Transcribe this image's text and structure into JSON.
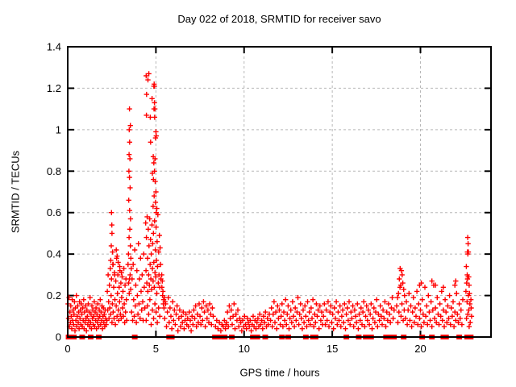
{
  "chart_data": {
    "type": "scatter",
    "title": "Day 022 of 2018, SRMTID for receiver savo",
    "xlabel": "GPS time / hours",
    "ylabel": "SRMTID / TECUs",
    "xlim": [
      0,
      24
    ],
    "ylim": [
      0,
      1.4
    ],
    "xticks": {
      "values": [
        0,
        5,
        10,
        15,
        20
      ],
      "labels": [
        "0",
        "5",
        "10",
        "15",
        "20"
      ]
    },
    "yticks": {
      "values": [
        0,
        0.2,
        0.4,
        0.6,
        0.8,
        1.0,
        1.2,
        1.4
      ],
      "labels": [
        "0",
        "0.2",
        "0.4",
        "0.6",
        "0.8",
        "1",
        "1.2",
        "1.4"
      ]
    },
    "grid": true,
    "legend": "none",
    "marker": "plus",
    "marker_color": "#ff0000",
    "grid_color": "#b8b8b8",
    "border_color": "#000000",
    "bands": [
      {
        "h0": 0.02,
        "dh": 0.026,
        "v": [
          0.16,
          0.09,
          0.19,
          0.05,
          0.12,
          0.07,
          0.15,
          0.1,
          0.04,
          0.18,
          0.08,
          0.13,
          0.06,
          0.11,
          0.17,
          0.03,
          0.14,
          0.08,
          0.2,
          0.05,
          0.1,
          0.15,
          0.07,
          0.12,
          0.04,
          0.17,
          0.09,
          0.13,
          0.06,
          0.16,
          0.11,
          0.05,
          0.14,
          0.08,
          0.18,
          0.04,
          0.12,
          0.07,
          0.15,
          0.09,
          0.03,
          0.13,
          0.1,
          0.06,
          0.16,
          0.08,
          0.12,
          0.05,
          0.19,
          0.07,
          0.11,
          0.04,
          0.15,
          0.09,
          0.13,
          0.06,
          0.1,
          0.17,
          0.05,
          0.12,
          0.08,
          0.14,
          0.04,
          0.11,
          0.07,
          0.16,
          0.09,
          0.05,
          0.13,
          0.1,
          0.18,
          0.06,
          0.12,
          0.08,
          0.15,
          0.04,
          0.1,
          0.14,
          0.07,
          0.11,
          0.05,
          0.13,
          0.09,
          0.06
        ]
      },
      {
        "h0": 2.22,
        "dh": 0.024,
        "v": [
          0.08,
          0.22,
          0.13,
          0.3,
          0.17,
          0.09,
          0.25,
          0.14,
          0.33,
          0.11,
          0.2,
          0.28,
          0.07,
          0.16,
          0.35,
          0.12,
          0.24,
          0.09,
          0.31,
          0.18,
          0.06,
          0.27,
          0.15,
          0.38,
          0.1,
          0.21,
          0.3,
          0.13,
          0.08,
          0.24,
          0.17,
          0.32,
          0.11,
          0.26,
          0.09,
          0.19,
          0.29,
          0.14,
          0.22,
          0.1,
          0.33,
          0.16,
          0.07,
          0.25,
          0.12,
          0.28,
          0.18,
          0.08
        ]
      },
      {
        "h0": 3.62,
        "dh": 0.03,
        "v": [
          0.12,
          0.28,
          0.08,
          0.35,
          0.18,
          0.1,
          0.42,
          0.15,
          0.25,
          0.07,
          0.32,
          0.2,
          0.11,
          0.45,
          0.16,
          0.28,
          0.09,
          0.38,
          0.22,
          0.13,
          0.3,
          0.17,
          0.08,
          0.4,
          0.24,
          0.14
        ]
      },
      {
        "h0": 4.42,
        "dh": 0.021,
        "v": [
          0.55,
          0.32,
          0.48,
          0.26,
          0.58,
          0.38,
          0.22,
          0.52,
          0.3,
          0.44,
          0.25,
          0.57,
          0.35,
          0.47,
          0.28,
          0.4,
          0.23,
          0.54,
          0.33,
          0.45,
          0.27,
          0.5,
          0.36,
          0.24,
          0.56,
          0.31,
          0.42,
          0.29,
          0.53,
          0.37,
          0.21,
          0.46,
          0.34,
          0.59,
          0.26,
          0.41,
          0.3,
          0.49,
          0.24,
          0.43,
          0.35,
          0.28
        ]
      },
      {
        "h0": 4.45,
        "dh": 0.07,
        "v": [
          0.08,
          0.15,
          0.11,
          0.18,
          0.06,
          0.13,
          0.09,
          0.16,
          0.12,
          0.07,
          0.14,
          0.1
        ]
      },
      {
        "h0": 5.5,
        "dh": 0.05,
        "v": [
          0.09,
          0.16,
          0.05,
          0.12,
          0.19,
          0.07,
          0.14,
          0.1,
          0.04,
          0.17,
          0.08,
          0.13,
          0.06,
          0.11,
          0.15,
          0.03,
          0.09,
          0.13,
          0.05,
          0.1,
          0.07,
          0.12,
          0.04,
          0.08,
          0.11,
          0.06,
          0.09,
          0.05,
          0.12,
          0.08,
          0.03,
          0.1,
          0.06,
          0.13,
          0.09,
          0.15,
          0.05,
          0.11,
          0.07,
          0.16,
          0.1,
          0.06,
          0.14,
          0.08,
          0.17,
          0.12,
          0.05,
          0.15,
          0.09,
          0.13,
          0.07,
          0.16,
          0.11,
          0.06,
          0.14,
          0.1
        ]
      },
      {
        "h0": 9.0,
        "dh": 0.054,
        "v": [
          0.07,
          0.12,
          0.05,
          0.15,
          0.09,
          0.13,
          0.06,
          0.1,
          0.16,
          0.04,
          0.11,
          0.08,
          0.13,
          0.05,
          0.09,
          0.07,
          0.03,
          0.08,
          0.05,
          0.1,
          0.06,
          0.04,
          0.09,
          0.07,
          0.05,
          0.08,
          0.03,
          0.06,
          0.1,
          0.05,
          0.08,
          0.04,
          0.07,
          0.09,
          0.05,
          0.11,
          0.06,
          0.08,
          0.04,
          0.1,
          0.07,
          0.12,
          0.05,
          0.09,
          0.06,
          0.11
        ]
      },
      {
        "h0": 11.5,
        "dh": 0.05,
        "v": [
          0.08,
          0.14,
          0.05,
          0.11,
          0.17,
          0.07,
          0.12,
          0.04,
          0.15,
          0.09,
          0.13,
          0.06,
          0.1,
          0.16,
          0.05,
          0.12,
          0.08,
          0.18,
          0.06,
          0.11,
          0.15,
          0.04,
          0.09,
          0.13,
          0.07,
          0.17,
          0.1,
          0.05,
          0.14,
          0.08,
          0.12,
          0.19,
          0.06,
          0.11,
          0.16,
          0.09,
          0.04,
          0.13,
          0.07,
          0.15,
          0.1,
          0.05,
          0.17,
          0.08,
          0.12,
          0.06,
          0.14,
          0.09,
          0.18,
          0.05,
          0.11,
          0.07,
          0.16,
          0.1,
          0.13,
          0.04,
          0.15,
          0.08,
          0.12,
          0.06
        ]
      },
      {
        "h0": 14.5,
        "dh": 0.052,
        "v": [
          0.1,
          0.16,
          0.06,
          0.13,
          0.08,
          0.17,
          0.05,
          0.12,
          0.15,
          0.07,
          0.11,
          0.04,
          0.14,
          0.09,
          0.17,
          0.06,
          0.12,
          0.08,
          0.15,
          0.05,
          0.1,
          0.13,
          0.07,
          0.16,
          0.04,
          0.11,
          0.14,
          0.08,
          0.17,
          0.06,
          0.12,
          0.09,
          0.15,
          0.05,
          0.13,
          0.1,
          0.07,
          0.16,
          0.04,
          0.11,
          0.08,
          0.14,
          0.06,
          0.12,
          0.17,
          0.05,
          0.1,
          0.15,
          0.08,
          0.13,
          0.06,
          0.11,
          0.16,
          0.04,
          0.09,
          0.14,
          0.07,
          0.12,
          0.18,
          0.05,
          0.11,
          0.08,
          0.15,
          0.1,
          0.06,
          0.13,
          0.09,
          0.17,
          0.05,
          0.12,
          0.08,
          0.16,
          0.11,
          0.07,
          0.14,
          0.19,
          0.09,
          0.13
        ]
      },
      {
        "h0": 19.15,
        "dh": 0.05,
        "v": [
          0.09,
          0.17,
          0.06,
          0.13,
          0.21,
          0.08,
          0.15,
          0.05,
          0.12,
          0.19,
          0.07,
          0.14,
          0.1,
          0.22,
          0.06,
          0.16,
          0.09,
          0.13,
          0.05,
          0.18,
          0.11,
          0.07,
          0.24,
          0.1,
          0.15,
          0.06,
          0.2,
          0.12,
          0.08,
          0.17,
          0.05,
          0.13,
          0.25,
          0.09,
          0.14,
          0.07,
          0.19,
          0.11,
          0.06,
          0.16,
          0.1,
          0.22,
          0.08,
          0.13,
          0.05,
          0.18,
          0.12,
          0.07,
          0.15,
          0.09,
          0.2,
          0.06,
          0.14,
          0.1,
          0.17,
          0.05,
          0.12,
          0.08,
          0.21,
          0.11,
          0.07,
          0.16,
          0.09,
          0.13,
          0.06,
          0.18
        ]
      }
    ],
    "points": [
      [
        2.48,
        0.6
      ],
      [
        2.5,
        0.54
      ],
      [
        2.51,
        0.5
      ],
      [
        2.47,
        0.44
      ],
      [
        2.54,
        0.41
      ],
      [
        2.44,
        0.37
      ],
      [
        2.58,
        0.35
      ],
      [
        2.66,
        0.3
      ],
      [
        2.75,
        0.42
      ],
      [
        2.8,
        0.39
      ],
      [
        2.86,
        0.36
      ],
      [
        2.95,
        0.34
      ],
      [
        3.05,
        0.31
      ],
      [
        3.5,
        1.1
      ],
      [
        3.55,
        1.02
      ],
      [
        3.49,
        1.0
      ],
      [
        3.51,
        0.94
      ],
      [
        3.48,
        0.88
      ],
      [
        3.53,
        0.86
      ],
      [
        3.47,
        0.8
      ],
      [
        3.5,
        0.77
      ],
      [
        3.54,
        0.72
      ],
      [
        3.46,
        0.66
      ],
      [
        3.51,
        0.61
      ],
      [
        3.56,
        0.57
      ],
      [
        3.52,
        0.52
      ],
      [
        3.48,
        0.48
      ],
      [
        3.55,
        0.44
      ],
      [
        3.44,
        0.4
      ],
      [
        3.58,
        0.38
      ],
      [
        3.42,
        0.35
      ],
      [
        3.6,
        0.33
      ],
      [
        3.54,
        0.3
      ],
      [
        3.5,
        0.28
      ],
      [
        3.45,
        0.26
      ],
      [
        3.57,
        0.23
      ],
      [
        3.49,
        0.21
      ],
      [
        4.45,
        1.26
      ],
      [
        4.6,
        1.27
      ],
      [
        4.55,
        1.24
      ],
      [
        4.9,
        1.22
      ],
      [
        4.92,
        1.21
      ],
      [
        4.88,
        1.21
      ],
      [
        4.47,
        1.17
      ],
      [
        4.78,
        1.15
      ],
      [
        4.92,
        1.13
      ],
      [
        4.89,
        1.1
      ],
      [
        4.94,
        1.1
      ],
      [
        4.46,
        1.07
      ],
      [
        4.68,
        1.06
      ],
      [
        4.93,
        1.06
      ],
      [
        5.0,
        0.99
      ],
      [
        5.02,
        0.97
      ],
      [
        4.98,
        0.96
      ],
      [
        4.7,
        0.94
      ],
      [
        4.85,
        0.87
      ],
      [
        4.95,
        0.86
      ],
      [
        4.88,
        0.84
      ],
      [
        4.92,
        0.8
      ],
      [
        4.8,
        0.79
      ],
      [
        4.86,
        0.76
      ],
      [
        4.96,
        0.75
      ],
      [
        5.0,
        0.7
      ],
      [
        4.9,
        0.68
      ],
      [
        4.98,
        0.65
      ],
      [
        4.84,
        0.63
      ],
      [
        5.05,
        0.62
      ],
      [
        5.02,
        0.6
      ],
      [
        5.33,
        0.3
      ],
      [
        5.36,
        0.27
      ],
      [
        5.34,
        0.24
      ],
      [
        5.4,
        0.22
      ],
      [
        5.38,
        0.2
      ],
      [
        5.44,
        0.18
      ],
      [
        5.42,
        0.16
      ],
      [
        5.48,
        0.19
      ],
      [
        5.46,
        0.14
      ],
      [
        5.52,
        0.17
      ],
      [
        8.38,
        0.05
      ],
      [
        8.45,
        0.08
      ],
      [
        8.52,
        0.04
      ],
      [
        8.6,
        0.07
      ],
      [
        8.68,
        0.03
      ],
      [
        8.75,
        0.06
      ],
      [
        8.82,
        0.05
      ],
      [
        8.88,
        0.08
      ],
      [
        8.94,
        0.04
      ],
      [
        8.98,
        0.06
      ],
      [
        18.85,
        0.33
      ],
      [
        18.92,
        0.32
      ],
      [
        18.96,
        0.3
      ],
      [
        18.8,
        0.28
      ],
      [
        19.0,
        0.26
      ],
      [
        18.88,
        0.25
      ],
      [
        18.84,
        0.24
      ],
      [
        19.05,
        0.23
      ],
      [
        18.75,
        0.21
      ],
      [
        19.1,
        0.2
      ],
      [
        18.7,
        0.19
      ],
      [
        18.65,
        0.15
      ],
      [
        18.78,
        0.12
      ],
      [
        18.9,
        0.1
      ],
      [
        19.02,
        0.08
      ],
      [
        18.72,
        0.07
      ],
      [
        18.95,
        0.16
      ],
      [
        19.08,
        0.13
      ],
      [
        19.95,
        0.25
      ],
      [
        20.05,
        0.26
      ],
      [
        20.65,
        0.27
      ],
      [
        20.85,
        0.25
      ],
      [
        21.3,
        0.24
      ],
      [
        21.95,
        0.25
      ],
      [
        22.0,
        0.27
      ],
      [
        22.68,
        0.48
      ],
      [
        22.7,
        0.45
      ],
      [
        22.66,
        0.41
      ],
      [
        22.72,
        0.41
      ],
      [
        22.69,
        0.4
      ],
      [
        22.6,
        0.34
      ],
      [
        22.65,
        0.3
      ],
      [
        22.7,
        0.29
      ],
      [
        22.74,
        0.29
      ],
      [
        22.67,
        0.28
      ],
      [
        22.62,
        0.26
      ],
      [
        22.76,
        0.25
      ],
      [
        22.58,
        0.22
      ],
      [
        22.78,
        0.21
      ],
      [
        22.72,
        0.2
      ],
      [
        22.64,
        0.17
      ],
      [
        22.8,
        0.16
      ],
      [
        22.74,
        0.13
      ],
      [
        22.69,
        0.11
      ],
      [
        22.61,
        0.09
      ],
      [
        22.82,
        0.07
      ],
      [
        22.76,
        0.05
      ],
      [
        22.86,
        0.18
      ],
      [
        22.88,
        0.14
      ],
      [
        22.9,
        0.1
      ]
    ],
    "zeros": [
      0.05,
      0.35,
      0.82,
      1.3,
      1.76,
      3.8,
      5.75,
      5.9,
      8.35,
      8.55,
      8.72,
      8.9,
      9.3,
      10.5,
      10.75,
      11.2,
      12.15,
      12.5,
      13.5,
      13.9,
      14.05,
      15.8,
      16.5,
      16.9,
      17.2,
      18.05,
      18.2,
      18.5,
      19.05,
      20.1,
      20.65,
      21.3,
      21.45,
      22.2,
      22.65,
      22.85
    ]
  }
}
